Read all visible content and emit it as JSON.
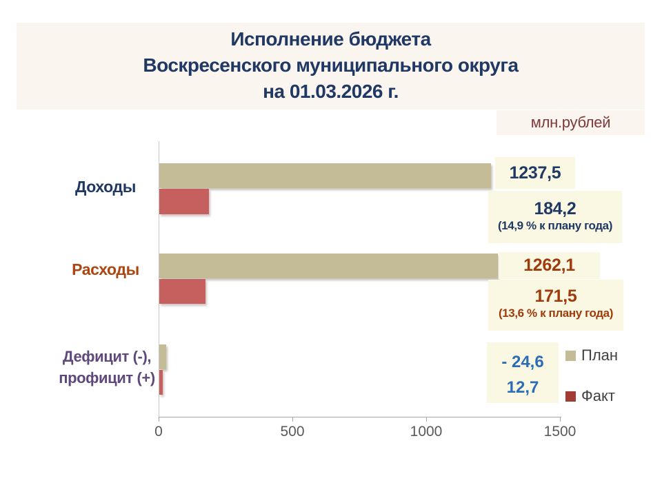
{
  "header": {
    "title_lines": [
      "Исполнение бюджета",
      "Воскресенского муниципального округа",
      "на 01.03.2026 г."
    ],
    "units_label": "млн.рублей"
  },
  "chart_data": {
    "type": "bar",
    "orientation": "horizontal",
    "title": "Исполнение бюджета Воскресенского муниципального округа на 01.03.2026 г.",
    "units": "млн.рублей",
    "categories": [
      "Доходы",
      "Расходы",
      "Дефицит (-), профицит (+)"
    ],
    "series": [
      {
        "name": "План",
        "color": "#C4BC96",
        "values": [
          1237.5,
          1262.1,
          -24.6
        ]
      },
      {
        "name": "Факт",
        "color": "#C5605E",
        "values": [
          184.2,
          171.5,
          12.7
        ]
      }
    ],
    "xlim": [
      0,
      1500
    ],
    "x_ticks": [
      "0",
      "500",
      "1000",
      "1500"
    ],
    "grid": false,
    "legend_position": "right-bottom",
    "annotations": {
      "income_plan": "1237,5",
      "income_fact": "184,2",
      "income_pct": "(14,9 % к плану года)",
      "expense_plan": "1262,1",
      "expense_fact": "171,5",
      "expense_pct": "(13,6 % к плану года)",
      "deficit_plan": "- 24,6",
      "deficit_fact": "12,7"
    }
  },
  "category_labels": {
    "income": "Доходы",
    "expense": "Расходы",
    "deficit_line1": "Дефицит (-),",
    "deficit_line2": "профицит (+)"
  },
  "legend": {
    "plan": "План",
    "fact": "Факт"
  },
  "colors": {
    "header_bg": "#FBF5F0",
    "title_text": "#1F3864",
    "units_text": "#7D3A3A",
    "plan_bar": "#C4BC96",
    "fact_bar": "#C5605E",
    "legend_plan_swatch": "#C4BC96",
    "legend_fact_swatch": "#A23B34",
    "income_text": "#1F3864",
    "expense_text": "#9E3A0C",
    "expense_category_text": "#AC450F",
    "deficit_category_text": "#5F497A",
    "deficit_value_text": "#2B6CB4",
    "value_box_bg": "#FAF8E2",
    "axis_line": "#A6A6A6",
    "tick_text": "#595959",
    "legend_text": "#404040"
  }
}
